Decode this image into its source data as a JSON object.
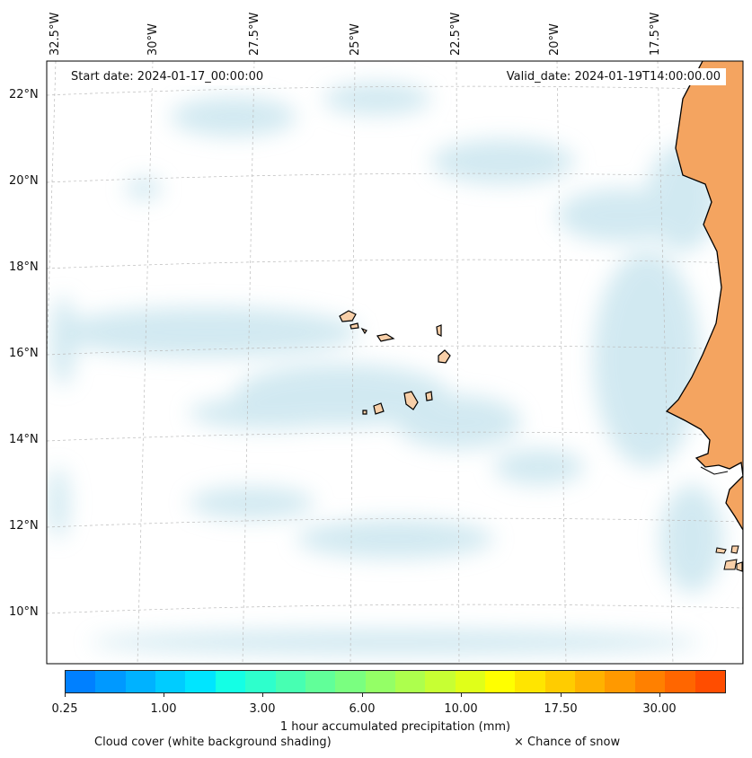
{
  "map": {
    "longitude_labels": [
      "32.5°W",
      "30°W",
      "27.5°W",
      "25°W",
      "22.5°W",
      "20°W",
      "17.5°W"
    ],
    "latitude_labels": [
      "22°N",
      "20°N",
      "18°N",
      "16°N",
      "14°N",
      "12°N",
      "10°N"
    ],
    "start_date": "Start date: 2024-01-17_00:00:00",
    "valid_date": "Valid_date: 2024-01-19T14:00:00.00",
    "colors": {
      "ocean": "#ffffff",
      "cloud": "#add8e6",
      "land": "#f4a460",
      "island": "#f8cfa8",
      "coastline": "#000000",
      "grid": "#bbbbbb"
    }
  },
  "colorbar": {
    "colors": [
      "#0080ff",
      "#0099ff",
      "#00b2ff",
      "#00ccff",
      "#00e5ff",
      "#14ffe5",
      "#2effcc",
      "#47ffb2",
      "#61ff99",
      "#7aff80",
      "#94ff66",
      "#adff4d",
      "#c7ff33",
      "#e0ff19",
      "#ffff00",
      "#ffe500",
      "#ffcc00",
      "#ffb200",
      "#ff9900",
      "#ff8000",
      "#ff6600",
      "#ff4d00"
    ],
    "tick_labels": [
      "0.25",
      "1.00",
      "3.00",
      "6.00",
      "10.00",
      "17.50",
      "30.00"
    ],
    "title": "1 hour accumulated precipitation (mm)"
  },
  "legend": {
    "cloud_cover": "Cloud cover (white background shading)",
    "snow": "× Chance of snow"
  }
}
